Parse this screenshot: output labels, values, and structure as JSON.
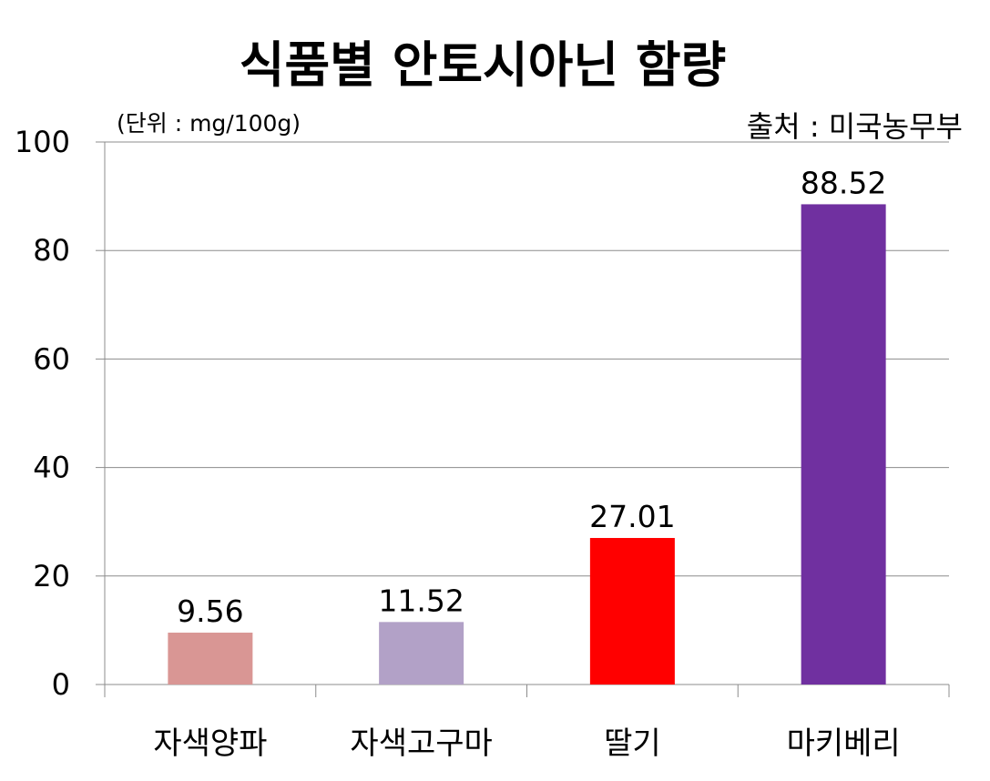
{
  "chart_data": {
    "type": "bar",
    "title": "식품별 안토시아닌 함량",
    "unit_note": "(단위 : mg/100g)",
    "source_note": "출처 : 미국농무부",
    "categories": [
      "자색양파",
      "자색고구마",
      "딸기",
      "마키베리"
    ],
    "values": [
      9.56,
      11.52,
      27.01,
      88.52
    ],
    "value_labels": [
      "9.56",
      "11.52",
      "27.01",
      "88.52"
    ],
    "bar_colors": [
      "#D99694",
      "#B2A1C7",
      "#FF0000",
      "#7030A0"
    ],
    "ylim": [
      0,
      100
    ],
    "yticks": [
      0,
      20,
      40,
      60,
      80,
      100
    ],
    "ytick_labels": [
      "0",
      "20",
      "40",
      "60",
      "80",
      "100"
    ],
    "grid": true,
    "legend": "none"
  }
}
